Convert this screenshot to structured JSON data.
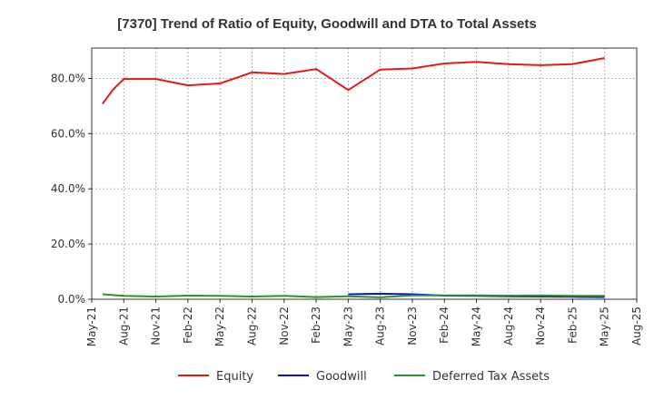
{
  "chart_data": {
    "type": "line",
    "title": "[7370]  Trend of Ratio of Equity, Goodwill and DTA to Total Assets",
    "xlabel": "",
    "ylabel": "",
    "x_tick_labels": [
      "May-21",
      "Aug-21",
      "Nov-21",
      "Feb-22",
      "May-22",
      "Aug-22",
      "Nov-22",
      "Feb-23",
      "May-23",
      "Aug-23",
      "Nov-23",
      "Feb-24",
      "May-24",
      "Aug-24",
      "Nov-24",
      "Feb-25",
      "May-25",
      "Aug-25"
    ],
    "x_range": [
      "2021-05",
      "2025-08"
    ],
    "y_ticks": [
      0,
      20,
      40,
      60,
      80
    ],
    "y_tick_labels": [
      "0.0%",
      "20.0%",
      "40.0%",
      "60.0%",
      "80.0%"
    ],
    "ylim": [
      0,
      91
    ],
    "grid": true,
    "legend_position": "bottom",
    "series": [
      {
        "name": "Equity",
        "color": "#e31a1c",
        "points": [
          [
            "2021-06",
            70.8
          ],
          [
            "2021-07",
            76.0
          ],
          [
            "2021-08",
            79.8
          ],
          [
            "2021-11",
            79.8
          ],
          [
            "2022-02",
            77.5
          ],
          [
            "2022-05",
            78.2
          ],
          [
            "2022-08",
            82.2
          ],
          [
            "2022-11",
            81.6
          ],
          [
            "2023-02",
            83.4
          ],
          [
            "2023-05",
            75.8
          ],
          [
            "2023-08",
            83.2
          ],
          [
            "2023-11",
            83.6
          ],
          [
            "2024-02",
            85.4
          ],
          [
            "2024-05",
            86.0
          ],
          [
            "2024-08",
            85.2
          ],
          [
            "2024-11",
            84.8
          ],
          [
            "2025-02",
            85.2
          ],
          [
            "2025-05",
            87.4
          ]
        ]
      },
      {
        "name": "Goodwill",
        "color": "#0a14c8",
        "points": [
          [
            "2023-05",
            1.8
          ],
          [
            "2023-08",
            2.0
          ],
          [
            "2023-11",
            1.8
          ],
          [
            "2024-02",
            1.3
          ],
          [
            "2024-05",
            1.2
          ],
          [
            "2024-08",
            1.1
          ],
          [
            "2024-11",
            1.0
          ],
          [
            "2025-02",
            0.9
          ],
          [
            "2025-05",
            0.8
          ]
        ]
      },
      {
        "name": "Deferred Tax Assets",
        "color": "#2a922a",
        "points": [
          [
            "2021-06",
            1.8
          ],
          [
            "2021-08",
            1.2
          ],
          [
            "2021-11",
            1.0
          ],
          [
            "2022-02",
            1.3
          ],
          [
            "2022-05",
            1.2
          ],
          [
            "2022-08",
            1.0
          ],
          [
            "2022-11",
            1.2
          ],
          [
            "2023-02",
            0.8
          ],
          [
            "2023-05",
            1.1
          ],
          [
            "2023-08",
            0.7
          ],
          [
            "2023-11",
            1.4
          ],
          [
            "2024-02",
            1.4
          ],
          [
            "2024-05",
            1.4
          ],
          [
            "2024-08",
            1.3
          ],
          [
            "2024-11",
            1.4
          ],
          [
            "2025-02",
            1.2
          ],
          [
            "2025-05",
            1.2
          ]
        ]
      }
    ]
  }
}
